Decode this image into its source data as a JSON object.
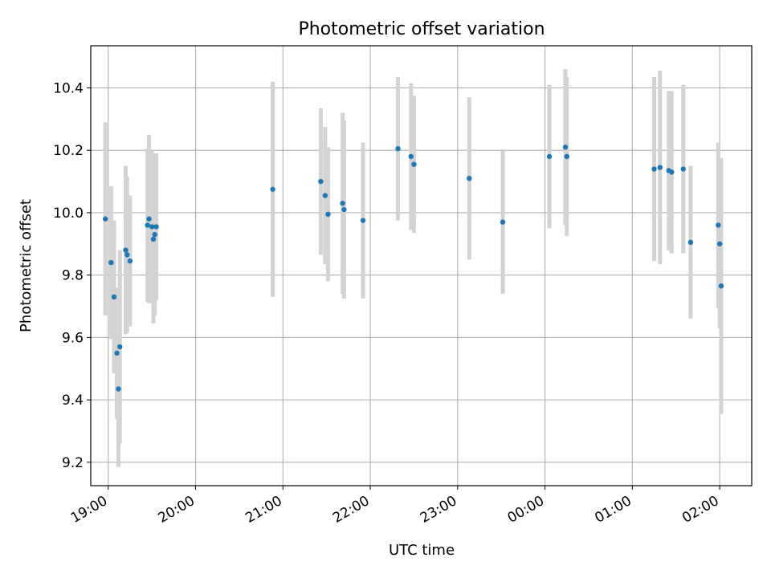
{
  "chart_data": {
    "type": "scatter",
    "title": "Photometric offset variation",
    "xlabel": "UTC time",
    "ylabel": "Photometric offset",
    "xlim": [
      "2000-01-01T18:48:00",
      "2000-01-02T02:22:00"
    ],
    "ylim": [
      9.125,
      10.535
    ],
    "grid": true,
    "x_ticks": [
      "19:00",
      "20:00",
      "21:00",
      "22:00",
      "23:00",
      "00:00",
      "01:00",
      "02:00"
    ],
    "y_ticks": [
      "9.2",
      "9.4",
      "9.6",
      "9.8",
      "10.0",
      "10.2",
      "10.4"
    ],
    "marker_color": "#1f77b4",
    "errorbar_color": "#d3d3d3",
    "points": [
      {
        "x": "2000-01-01T18:58:00",
        "y": 9.98,
        "err": 0.31
      },
      {
        "x": "2000-01-01T19:02:00",
        "y": 9.84,
        "err": 0.245
      },
      {
        "x": "2000-01-01T19:04:00",
        "y": 9.73,
        "err": 0.245
      },
      {
        "x": "2000-01-01T19:06:00",
        "y": 9.55,
        "err": 0.21
      },
      {
        "x": "2000-01-01T19:07:00",
        "y": 9.435,
        "err": 0.25
      },
      {
        "x": "2000-01-01T19:08:00",
        "y": 9.57,
        "err": 0.31
      },
      {
        "x": "2000-01-01T19:12:00",
        "y": 9.88,
        "err": 0.27
      },
      {
        "x": "2000-01-01T19:13:00",
        "y": 9.865,
        "err": 0.25
      },
      {
        "x": "2000-01-01T19:15:00",
        "y": 9.845,
        "err": 0.21
      },
      {
        "x": "2000-01-01T19:27:00",
        "y": 9.96,
        "err": 0.245
      },
      {
        "x": "2000-01-01T19:28:00",
        "y": 9.98,
        "err": 0.27
      },
      {
        "x": "2000-01-01T19:30:00",
        "y": 9.955,
        "err": 0.245
      },
      {
        "x": "2000-01-01T19:31:00",
        "y": 9.915,
        "err": 0.27
      },
      {
        "x": "2000-01-01T19:32:00",
        "y": 9.93,
        "err": 0.26
      },
      {
        "x": "2000-01-01T19:33:00",
        "y": 9.955,
        "err": 0.235
      },
      {
        "x": "2000-01-01T20:53:00",
        "y": 10.075,
        "err": 0.345
      },
      {
        "x": "2000-01-01T21:26:00",
        "y": 10.1,
        "err": 0.235
      },
      {
        "x": "2000-01-01T21:29:00",
        "y": 10.055,
        "err": 0.22
      },
      {
        "x": "2000-01-01T21:31:00",
        "y": 9.995,
        "err": 0.215
      },
      {
        "x": "2000-01-01T21:41:00",
        "y": 10.03,
        "err": 0.29
      },
      {
        "x": "2000-01-01T21:42:00",
        "y": 10.01,
        "err": 0.285
      },
      {
        "x": "2000-01-01T21:55:00",
        "y": 9.975,
        "err": 0.25
      },
      {
        "x": "2000-01-01T22:19:00",
        "y": 10.205,
        "err": 0.23
      },
      {
        "x": "2000-01-01T22:28:00",
        "y": 10.18,
        "err": 0.235
      },
      {
        "x": "2000-01-01T22:30:00",
        "y": 10.155,
        "err": 0.22
      },
      {
        "x": "2000-01-01T23:08:00",
        "y": 10.11,
        "err": 0.26
      },
      {
        "x": "2000-01-01T23:31:00",
        "y": 9.97,
        "err": 0.23
      },
      {
        "x": "2000-01-02T00:03:00",
        "y": 10.18,
        "err": 0.23
      },
      {
        "x": "2000-01-02T00:14:00",
        "y": 10.21,
        "err": 0.25
      },
      {
        "x": "2000-01-02T00:15:00",
        "y": 10.18,
        "err": 0.255
      },
      {
        "x": "2000-01-02T01:15:00",
        "y": 10.14,
        "err": 0.295
      },
      {
        "x": "2000-01-02T01:19:00",
        "y": 10.145,
        "err": 0.31
      },
      {
        "x": "2000-01-02T01:25:00",
        "y": 10.135,
        "err": 0.255
      },
      {
        "x": "2000-01-02T01:27:00",
        "y": 10.13,
        "err": 0.26
      },
      {
        "x": "2000-01-02T01:35:00",
        "y": 10.14,
        "err": 0.27
      },
      {
        "x": "2000-01-02T01:40:00",
        "y": 9.905,
        "err": 0.245
      },
      {
        "x": "2000-01-02T01:59:00",
        "y": 9.96,
        "err": 0.265
      },
      {
        "x": "2000-01-02T02:00:00",
        "y": 9.9,
        "err": 0.27
      },
      {
        "x": "2000-01-02T02:01:00",
        "y": 9.765,
        "err": 0.41
      }
    ]
  }
}
